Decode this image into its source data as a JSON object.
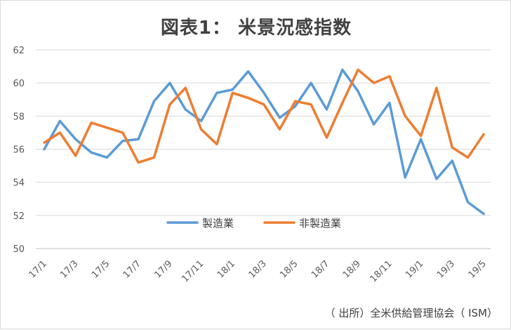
{
  "chart_data": {
    "type": "line",
    "title": "図表1： 米景況感指数",
    "xlabel": "",
    "ylabel": "",
    "ylim": [
      50,
      62
    ],
    "yticks": [
      50,
      52,
      54,
      56,
      58,
      60,
      62
    ],
    "grid": "horizontal",
    "legend": "bottom-center",
    "categories": [
      "17/1",
      "17/2",
      "17/3",
      "17/4",
      "17/5",
      "17/6",
      "17/7",
      "17/8",
      "17/9",
      "17/10",
      "17/11",
      "17/12",
      "18/1",
      "18/2",
      "18/3",
      "18/4",
      "18/5",
      "18/6",
      "18/7",
      "18/8",
      "18/9",
      "18/10",
      "18/11",
      "18/12",
      "19/1",
      "19/2",
      "19/3",
      "19/4",
      "19/5"
    ],
    "tick_labels": [
      "17/1",
      "17/3",
      "17/5",
      "17/7",
      "17/9",
      "17/11",
      "18/1",
      "18/3",
      "18/5",
      "18/7",
      "18/9",
      "18/11",
      "19/1",
      "19/3",
      "19/5"
    ],
    "series": [
      {
        "name": "製造業",
        "color": "#5b9bd5",
        "values": [
          56.0,
          57.7,
          56.6,
          55.8,
          55.5,
          56.5,
          56.6,
          58.9,
          60.0,
          58.4,
          57.7,
          59.4,
          59.6,
          60.7,
          59.4,
          57.9,
          58.6,
          60.0,
          58.4,
          60.8,
          59.5,
          57.5,
          58.8,
          54.3,
          56.6,
          54.2,
          55.3,
          52.8,
          52.1
        ]
      },
      {
        "name": "非製造業",
        "color": "#ed7d31",
        "values": [
          56.4,
          57.0,
          55.6,
          57.6,
          57.3,
          57.0,
          55.2,
          55.5,
          58.7,
          59.7,
          57.2,
          56.3,
          59.4,
          59.1,
          58.7,
          57.2,
          58.9,
          58.7,
          56.7,
          58.8,
          60.8,
          60.0,
          60.4,
          58.0,
          56.8,
          59.7,
          56.1,
          55.5,
          56.9
        ]
      }
    ]
  },
  "source_note": "（ 出所）全米供給管理協会（ ISM）"
}
